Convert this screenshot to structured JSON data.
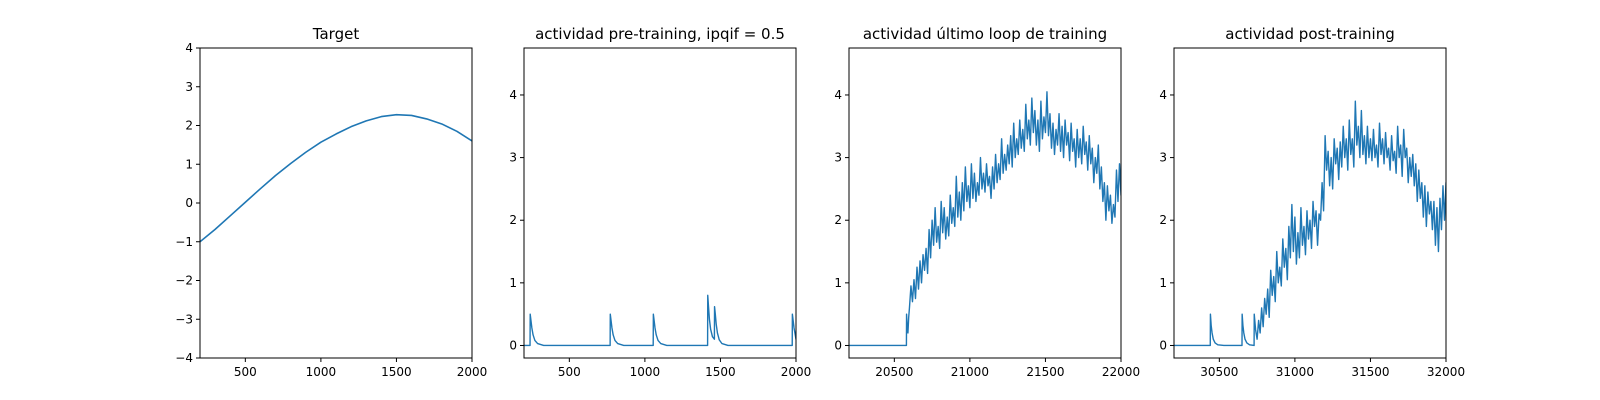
{
  "series_color": "#1f77b4",
  "chart_data": [
    {
      "type": "line",
      "title": "Target",
      "xlabel": "",
      "ylabel": "",
      "xlim": [
        200,
        2000
      ],
      "ylim": [
        -4,
        4
      ],
      "xticks": [
        500,
        1000,
        1500,
        2000
      ],
      "xtick_labels": [
        "500",
        "1000",
        "1500",
        "2000"
      ],
      "yticks": [
        -4,
        -3,
        -2,
        -1,
        0,
        1,
        2,
        3,
        4
      ],
      "ytick_labels": [
        "−4",
        "−3",
        "−2",
        "−1",
        "0",
        "1",
        "2",
        "3",
        "4"
      ],
      "grid": false,
      "series": [
        {
          "x": [
            200,
            300,
            400,
            500,
            600,
            700,
            800,
            900,
            1000,
            1100,
            1200,
            1300,
            1400,
            1500,
            1600,
            1700,
            1800,
            1900,
            2000
          ],
          "values": [
            -1.0,
            -0.68,
            -0.33,
            0.02,
            0.37,
            0.71,
            1.02,
            1.31,
            1.57,
            1.78,
            1.97,
            2.12,
            2.23,
            2.28,
            2.26,
            2.17,
            2.04,
            1.85,
            1.6
          ]
        }
      ]
    },
    {
      "type": "line",
      "title": "actividad pre-training, ipqif = 0.5",
      "xlabel": "",
      "ylabel": "",
      "xlim": [
        200,
        2000
      ],
      "ylim": [
        -0.2,
        4.75
      ],
      "xticks": [
        500,
        1000,
        1500,
        2000
      ],
      "xtick_labels": [
        "500",
        "1000",
        "1500",
        "2000"
      ],
      "yticks": [
        0,
        1,
        2,
        3,
        4
      ],
      "ytick_labels": [
        "0",
        "1",
        "2",
        "3",
        "4"
      ],
      "grid": false,
      "series": [
        {
          "x": [
            200,
            240,
            241,
            246,
            252,
            260,
            272,
            290,
            330,
            770,
            771,
            776,
            782,
            790,
            802,
            820,
            860,
            1055,
            1056,
            1061,
            1067,
            1075,
            1087,
            1105,
            1145,
            1415,
            1416,
            1421,
            1427,
            1435,
            1447,
            1460,
            1461,
            1466,
            1472,
            1480,
            1492,
            1510,
            1550,
            1975,
            1976,
            1981,
            1987,
            1995,
            2000
          ],
          "values": [
            0,
            0,
            0.5,
            0.4,
            0.28,
            0.17,
            0.08,
            0.03,
            0,
            0,
            0.5,
            0.4,
            0.28,
            0.17,
            0.08,
            0.03,
            0,
            0,
            0.5,
            0.4,
            0.28,
            0.17,
            0.08,
            0.03,
            0,
            0,
            0.8,
            0.62,
            0.42,
            0.26,
            0.14,
            0.1,
            0.62,
            0.5,
            0.34,
            0.2,
            0.09,
            0.03,
            0,
            0,
            0.5,
            0.4,
            0.28,
            0.17,
            0.1
          ]
        }
      ]
    },
    {
      "type": "line",
      "title": "actividad último loop de training",
      "xlabel": "",
      "ylabel": "",
      "xlim": [
        20200,
        22000
      ],
      "ylim": [
        -0.2,
        4.75
      ],
      "xticks": [
        20500,
        21000,
        21500,
        22000
      ],
      "xtick_labels": [
        "20500",
        "21000",
        "21500",
        "22000"
      ],
      "yticks": [
        0,
        1,
        2,
        3,
        4
      ],
      "ytick_labels": [
        "0",
        "1",
        "2",
        "3",
        "4"
      ],
      "grid": false,
      "series": [
        {
          "x": [
            20200,
            20580,
            20581,
            20585,
            20590,
            20595,
            20600,
            20610,
            20620,
            20630,
            20640,
            20650,
            20660,
            20670,
            20680,
            20690,
            20700,
            20710,
            20720,
            20730,
            20740,
            20750,
            20760,
            20770,
            20780,
            20790,
            20800,
            20810,
            20820,
            20830,
            20840,
            20850,
            20860,
            20870,
            20880,
            20890,
            20900,
            20910,
            20920,
            20930,
            20940,
            20950,
            20960,
            20970,
            20980,
            20990,
            21000,
            21010,
            21020,
            21030,
            21040,
            21050,
            21060,
            21070,
            21080,
            21090,
            21100,
            21110,
            21120,
            21130,
            21140,
            21150,
            21160,
            21170,
            21180,
            21190,
            21200,
            21210,
            21220,
            21230,
            21240,
            21250,
            21260,
            21270,
            21280,
            21290,
            21300,
            21310,
            21320,
            21330,
            21340,
            21350,
            21360,
            21370,
            21380,
            21390,
            21400,
            21410,
            21420,
            21430,
            21440,
            21450,
            21460,
            21470,
            21480,
            21490,
            21500,
            21510,
            21520,
            21530,
            21540,
            21550,
            21560,
            21570,
            21580,
            21590,
            21600,
            21610,
            21620,
            21630,
            21640,
            21650,
            21660,
            21670,
            21680,
            21690,
            21700,
            21710,
            21720,
            21730,
            21740,
            21750,
            21760,
            21770,
            21780,
            21790,
            21800,
            21810,
            21820,
            21830,
            21840,
            21850,
            21860,
            21870,
            21880,
            21890,
            21900,
            21910,
            21920,
            21930,
            21940,
            21950,
            21960,
            21970,
            21980,
            21990,
            22000
          ],
          "values": [
            0,
            0,
            0.5,
            0.3,
            0.2,
            0.45,
            0.6,
            0.95,
            0.7,
            1.05,
            0.75,
            1.25,
            0.9,
            1.35,
            1.0,
            1.45,
            1.2,
            1.55,
            1.15,
            1.85,
            1.4,
            2.0,
            1.6,
            2.2,
            1.65,
            1.9,
            1.55,
            2.3,
            1.8,
            2.2,
            1.7,
            2.05,
            1.75,
            2.4,
            1.95,
            2.2,
            1.9,
            2.7,
            2.05,
            2.45,
            2.0,
            2.6,
            2.15,
            2.85,
            2.3,
            2.55,
            2.2,
            2.9,
            2.35,
            2.75,
            2.3,
            2.6,
            2.4,
            3.0,
            2.5,
            2.75,
            2.45,
            2.9,
            2.55,
            2.7,
            2.35,
            2.85,
            2.5,
            3.05,
            2.6,
            2.9,
            2.65,
            3.3,
            2.75,
            3.05,
            2.8,
            3.2,
            2.9,
            3.35,
            2.85,
            3.55,
            3.0,
            3.3,
            3.05,
            3.6,
            3.15,
            3.45,
            3.1,
            3.85,
            3.3,
            3.6,
            3.2,
            3.95,
            3.4,
            3.75,
            3.2,
            3.6,
            3.1,
            3.9,
            3.3,
            3.65,
            3.4,
            4.05,
            3.35,
            3.7,
            3.15,
            3.55,
            3.05,
            3.45,
            3.2,
            3.7,
            3.1,
            3.5,
            3.0,
            3.6,
            3.2,
            3.4,
            2.95,
            3.55,
            3.1,
            3.3,
            2.85,
            3.45,
            3.0,
            3.3,
            2.9,
            3.5,
            3.05,
            3.25,
            2.8,
            3.35,
            2.9,
            3.15,
            2.6,
            3.0,
            2.75,
            3.2,
            2.5,
            2.85,
            2.3,
            2.6,
            2.0,
            2.55,
            2.15,
            2.4,
            1.95,
            2.25,
            2.05,
            2.8,
            2.3,
            2.9,
            2.4
          ]
        }
      ]
    },
    {
      "type": "line",
      "title": "actividad post-training",
      "xlabel": "",
      "ylabel": "",
      "xlim": [
        30200,
        32000
      ],
      "ylim": [
        -0.2,
        4.75
      ],
      "xticks": [
        30500,
        31000,
        31500,
        32000
      ],
      "xtick_labels": [
        "30500",
        "31000",
        "31500",
        "32000"
      ],
      "yticks": [
        0,
        1,
        2,
        3,
        4
      ],
      "ytick_labels": [
        "0",
        "1",
        "2",
        "3",
        "4"
      ],
      "grid": false,
      "series": [
        {
          "x": [
            30200,
            30440,
            30441,
            30446,
            30452,
            30460,
            30472,
            30490,
            30530,
            30650,
            30651,
            30656,
            30662,
            30670,
            30682,
            30700,
            30730,
            30731,
            30740,
            30750,
            30760,
            30770,
            30780,
            30790,
            30800,
            30810,
            30820,
            30830,
            30840,
            30850,
            30860,
            30870,
            30880,
            30890,
            30900,
            30910,
            30920,
            30930,
            30940,
            30950,
            30960,
            30970,
            30980,
            30990,
            31000,
            31010,
            31020,
            31030,
            31040,
            31050,
            31060,
            31070,
            31080,
            31090,
            31100,
            31110,
            31120,
            31130,
            31140,
            31150,
            31160,
            31170,
            31180,
            31190,
            31200,
            31210,
            31220,
            31230,
            31240,
            31250,
            31260,
            31270,
            31280,
            31290,
            31300,
            31310,
            31320,
            31330,
            31340,
            31350,
            31360,
            31370,
            31380,
            31390,
            31400,
            31410,
            31420,
            31430,
            31440,
            31450,
            31460,
            31470,
            31480,
            31490,
            31500,
            31510,
            31520,
            31530,
            31540,
            31550,
            31560,
            31570,
            31580,
            31590,
            31600,
            31610,
            31620,
            31630,
            31640,
            31650,
            31660,
            31670,
            31680,
            31690,
            31700,
            31710,
            31720,
            31730,
            31740,
            31750,
            31760,
            31770,
            31780,
            31790,
            31800,
            31810,
            31820,
            31830,
            31840,
            31850,
            31860,
            31870,
            31880,
            31890,
            31900,
            31910,
            31920,
            31930,
            31940,
            31950,
            31960,
            31970,
            31980,
            31990,
            32000
          ],
          "values": [
            0,
            0,
            0.5,
            0.32,
            0.2,
            0.1,
            0.04,
            0.01,
            0,
            0,
            0.5,
            0.32,
            0.2,
            0.1,
            0.04,
            0.01,
            0,
            0.5,
            0.25,
            0.1,
            0.4,
            0.2,
            0.6,
            0.3,
            0.75,
            0.5,
            0.9,
            0.45,
            1.2,
            0.8,
            1.1,
            0.7,
            1.5,
            1.0,
            1.25,
            0.95,
            1.7,
            1.25,
            1.55,
            1.05,
            1.9,
            1.4,
            2.25,
            1.5,
            2.05,
            1.3,
            1.8,
            1.4,
            2.2,
            1.6,
            1.9,
            1.45,
            2.15,
            1.7,
            2.0,
            1.55,
            2.3,
            1.9,
            2.15,
            1.6,
            2.1,
            2.0,
            2.6,
            2.15,
            3.35,
            2.8,
            3.1,
            2.55,
            3.0,
            2.5,
            3.3,
            2.9,
            3.15,
            2.65,
            3.25,
            2.85,
            3.5,
            3.0,
            3.3,
            2.8,
            3.6,
            3.05,
            3.3,
            2.85,
            3.9,
            3.2,
            3.5,
            3.0,
            3.75,
            3.05,
            3.35,
            2.9,
            3.5,
            3.0,
            3.3,
            2.95,
            3.45,
            3.0,
            3.2,
            2.85,
            3.55,
            3.05,
            3.3,
            2.9,
            3.4,
            3.0,
            3.15,
            2.8,
            3.35,
            2.95,
            3.1,
            2.75,
            3.5,
            3.0,
            3.2,
            2.7,
            3.45,
            3.0,
            3.15,
            2.6,
            3.0,
            2.7,
            3.05,
            2.55,
            2.9,
            2.3,
            2.8,
            2.35,
            2.6,
            2.05,
            2.55,
            1.9,
            2.45,
            2.1,
            2.3,
            1.85,
            2.3,
            1.6,
            2.2,
            1.5,
            2.35,
            1.85,
            2.55,
            2.0,
            2.6
          ]
        }
      ]
    }
  ]
}
